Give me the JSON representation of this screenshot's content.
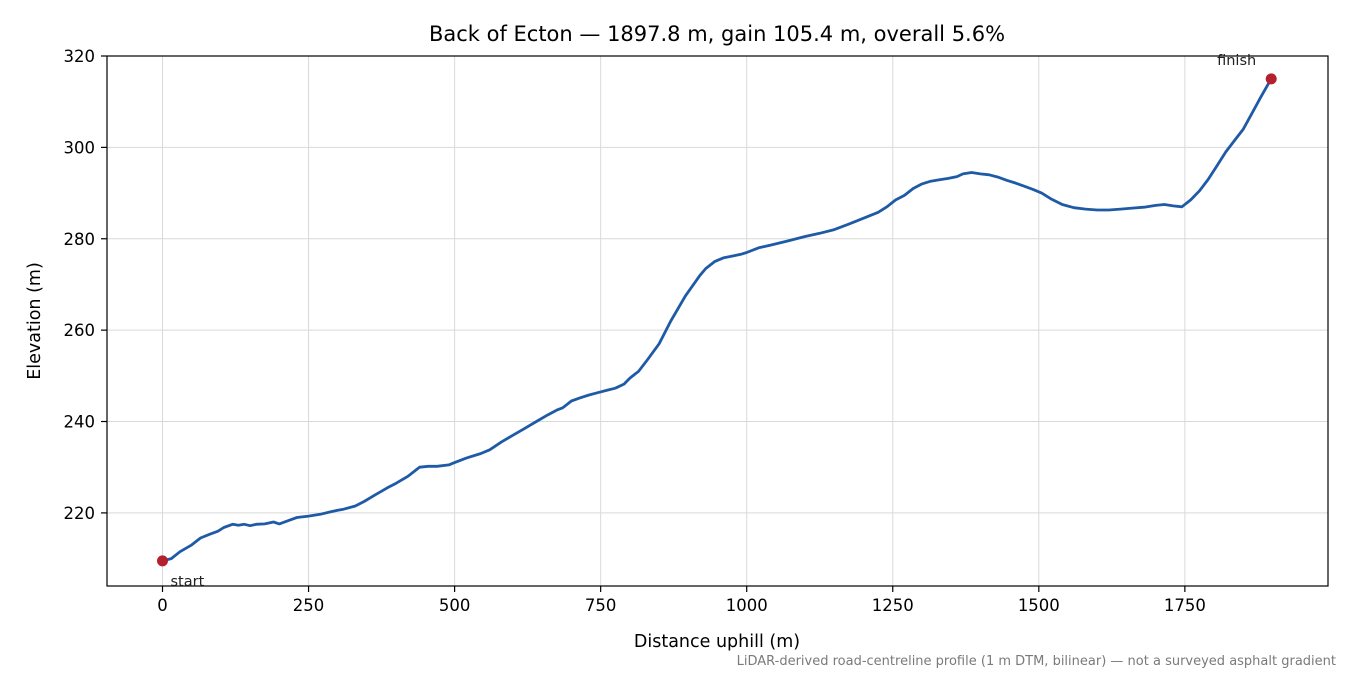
{
  "chart_data": {
    "type": "line",
    "title": "Back of Ecton — 1897.8 m, gain 105.4 m, overall 5.6%",
    "xlabel": "Distance uphill (m)",
    "ylabel": "Elevation (m)",
    "xlim": [
      -95,
      1995
    ],
    "ylim": [
      204,
      320
    ],
    "xticks": [
      0,
      250,
      500,
      750,
      1000,
      1250,
      1500,
      1750
    ],
    "yticks": [
      220,
      240,
      260,
      280,
      300,
      320
    ],
    "grid": true,
    "footnote": "LiDAR-derived road-centreline profile (1 m DTM, bilinear) — not a surveyed asphalt gradient",
    "line_color": "#1f5aa6",
    "marker_color": "#b5202e",
    "series": [
      {
        "x": [
          0,
          15,
          30,
          50,
          65,
          80,
          95,
          105,
          120,
          130,
          140,
          150,
          160,
          175,
          190,
          200,
          215,
          230,
          250,
          270,
          290,
          300,
          310,
          330,
          345,
          365,
          385,
          400,
          420,
          435,
          440,
          455,
          470,
          490,
          500,
          520,
          545,
          560,
          580,
          600,
          620,
          640,
          660,
          675,
          685,
          700,
          715,
          730,
          745,
          760,
          775,
          790,
          800,
          815,
          830,
          850,
          870,
          895,
          920,
          930,
          945,
          960,
          975,
          990,
          1000,
          1020,
          1040,
          1070,
          1100,
          1125,
          1150,
          1175,
          1200,
          1225,
          1240,
          1255,
          1270,
          1285,
          1300,
          1315,
          1330,
          1345,
          1360,
          1370,
          1385,
          1400,
          1415,
          1430,
          1445,
          1460,
          1475,
          1490,
          1505,
          1520,
          1540,
          1560,
          1580,
          1600,
          1620,
          1640,
          1660,
          1680,
          1700,
          1715,
          1730,
          1745,
          1760,
          1775,
          1790,
          1805,
          1820,
          1835,
          1850,
          1865,
          1880,
          1897.8
        ],
        "y": [
          209.5,
          210.0,
          211.5,
          213.0,
          214.5,
          215.3,
          216.0,
          216.8,
          217.5,
          217.3,
          217.5,
          217.2,
          217.5,
          217.6,
          218.0,
          217.6,
          218.3,
          219.0,
          219.3,
          219.7,
          220.3,
          220.6,
          220.8,
          221.5,
          222.5,
          224.0,
          225.5,
          226.5,
          228.0,
          229.5,
          230.0,
          230.2,
          230.2,
          230.5,
          231.0,
          232.0,
          233.0,
          233.8,
          235.5,
          237.0,
          238.5,
          240.0,
          241.5,
          242.5,
          243.0,
          244.5,
          245.2,
          245.8,
          246.3,
          246.8,
          247.3,
          248.2,
          249.5,
          251.0,
          253.5,
          257.0,
          262.0,
          267.5,
          272.0,
          273.5,
          275.0,
          275.8,
          276.2,
          276.6,
          277.0,
          278.0,
          278.6,
          279.5,
          280.5,
          281.2,
          282.0,
          283.2,
          284.5,
          285.8,
          287.0,
          288.5,
          289.5,
          291.0,
          292.0,
          292.6,
          292.9,
          293.2,
          293.6,
          294.2,
          294.5,
          294.2,
          294.0,
          293.5,
          292.8,
          292.2,
          291.5,
          290.8,
          290.0,
          288.8,
          287.5,
          286.8,
          286.5,
          286.3,
          286.3,
          286.5,
          286.7,
          286.9,
          287.3,
          287.5,
          287.2,
          287.0,
          288.5,
          290.5,
          293.0,
          296.0,
          299.0,
          301.5,
          304.0,
          307.5,
          311.0,
          315.0
        ]
      }
    ],
    "annotations": [
      {
        "text": "start",
        "x": 0,
        "y": 209.5
      },
      {
        "text": "finish",
        "x": 1897.8,
        "y": 315.0
      }
    ]
  }
}
